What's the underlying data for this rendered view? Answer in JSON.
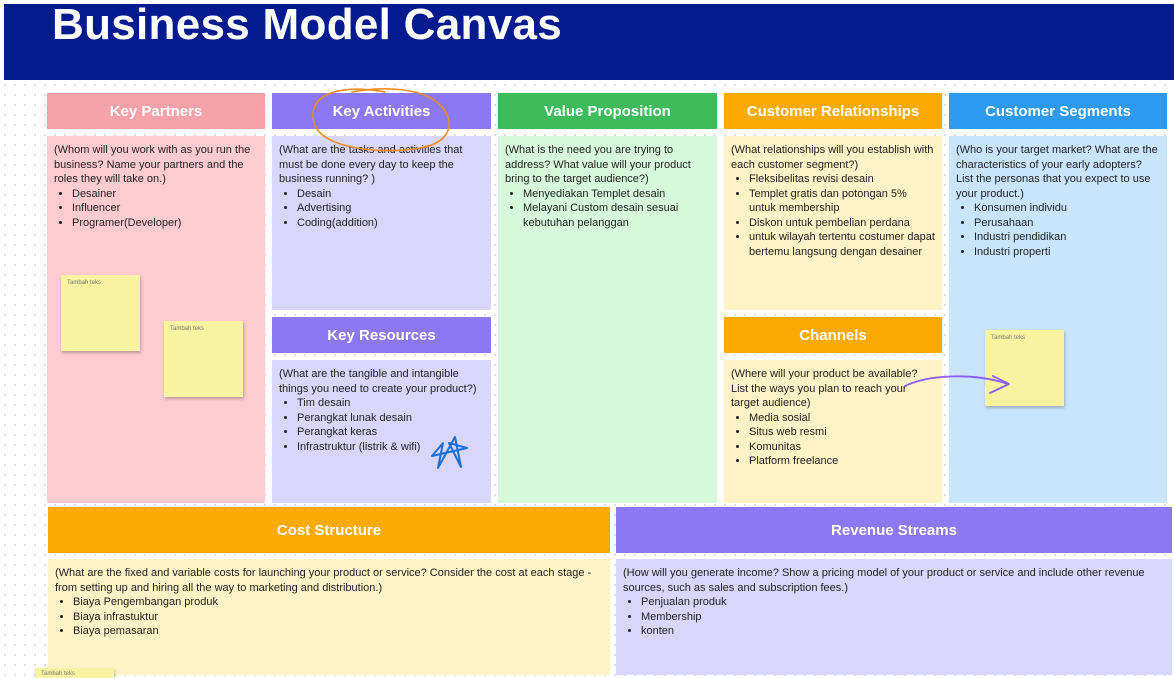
{
  "page": {
    "title": "Business Model Canvas"
  },
  "blocks": {
    "key_partners": {
      "title": "Key Partners",
      "prompt": "(Whom will you work with as you run the business? Name your partners and the roles they will take on.)",
      "items": [
        "Desainer",
        "Influencer",
        "Programer(Developer)"
      ]
    },
    "key_activities": {
      "title": "Key Activities",
      "prompt": "(What are the tasks and activities that must be done every day to keep the business running? )",
      "items": [
        "Desain",
        "Advertising",
        "Coding(addition)"
      ]
    },
    "key_resources": {
      "title": "Key Resources",
      "prompt": "(What are the tangible and intangible things you need to create your product?)",
      "items": [
        "Tim desain",
        "Perangkat lunak desain",
        "Perangkat keras",
        "Infrastruktur (listrik & wifi)"
      ]
    },
    "value_proposition": {
      "title": "Value Proposition",
      "prompt": "(What is the need you are trying to address? What value will your product bring to the target audience?)",
      "items": [
        "Menyediakan Templet desain",
        "Melayani Custom desain sesuai kebutuhan pelanggan"
      ]
    },
    "customer_relationships": {
      "title": "Customer Relationships",
      "prompt": "(What relationships will you establish with each customer segment?)",
      "items": [
        "Fleksibelitas revisi desain",
        "Templet gratis dan potongan 5% untuk membership",
        "Diskon untuk pembelian perdana",
        "untuk wilayah tertentu costumer dapat bertemu langsung dengan desainer"
      ]
    },
    "channels": {
      "title": "Channels",
      "prompt": "(Where will your product be available? List the ways you plan to reach your target audience)",
      "items": [
        "Media sosial",
        "Situs web resmi",
        "Komunitas",
        "Platform freelance"
      ]
    },
    "customer_segments": {
      "title": "Customer Segments",
      "prompt": "(Who is your target market? What are the characteristics of your early adopters? List the personas that you expect to use your product.)",
      "items": [
        "Konsumen individu",
        "Perusahaan",
        "Industri pendidikan",
        "Industri properti"
      ]
    },
    "cost_structure": {
      "title": "Cost Structure",
      "prompt": "(What are the fixed and variable costs for launching your product or service? Consider the cost at each stage - from setting up and hiring all the way to marketing and distribution.)",
      "items": [
        "Biaya Pengembangan produk",
        "Biaya infrastuktur",
        "Biaya pemasaran"
      ]
    },
    "revenue_streams": {
      "title": "Revenue Streams",
      "prompt": "(How will you generate income? Show a pricing model of your product or service and include other revenue sources, such as sales and subscription fees.)",
      "items": [
        "Penjualan produk",
        "Membership",
        "konten"
      ]
    }
  },
  "stickies": {
    "note_1": "Tambah teks",
    "note_2": "Tambah teks",
    "note_3": "Tambah teks",
    "note_4": "Tambah teks"
  },
  "colors": {
    "header_bg": "#041b8f",
    "key_partners": "#f7a1a8",
    "key_activities": "#8b78f2",
    "value_proposition": "#3dbb5a",
    "customer_relationships": "#fdab04",
    "customer_segments": "#2d99f0"
  }
}
